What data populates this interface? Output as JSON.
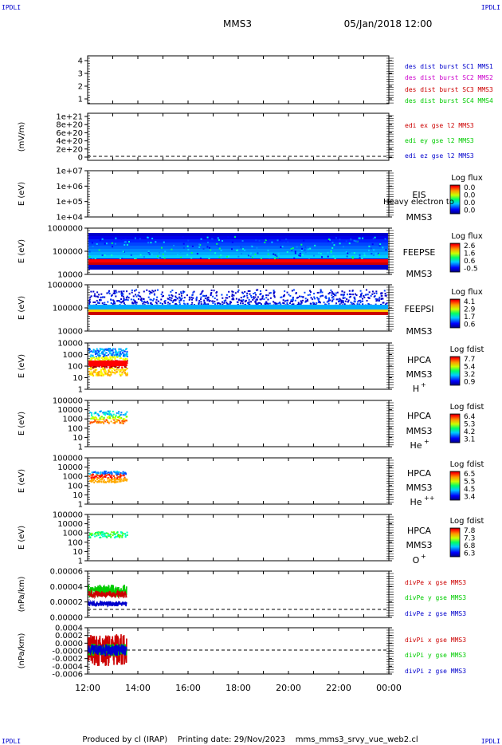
{
  "corner_labels": {
    "top_left": "IPDLI",
    "top_right": "IPDLI",
    "bottom_left": "IPDLI",
    "bottom_right": "IPDLI"
  },
  "header": {
    "spacecraft": "MMS3",
    "datetime": "05/Jan/2018 12:00"
  },
  "footer": {
    "text": "Produced by cl (IRAP)    Printing date: 29/Nov/2023    mms_mms3_srvy_vue_web2.cl"
  },
  "colors": {
    "blue": "#0000cc",
    "magenta": "#cc00cc",
    "red": "#cc0000",
    "green": "#00cc00",
    "cyan": "#00cccc",
    "yellow": "#ffff00",
    "dark_red": "#990000"
  },
  "chart_data": [
    {
      "type": "line",
      "panel": "des dist burst",
      "ylabel": "",
      "yticks": [
        "1",
        "2",
        "3",
        "4"
      ],
      "ylim": [
        0.5,
        4.5
      ],
      "legend": [
        {
          "name": "des dist burst SC1 MMS1",
          "color": "#0000cc"
        },
        {
          "name": "des dist burst SC2 MMS2",
          "color": "#cc00cc"
        },
        {
          "name": "des dist burst SC3 MMS3",
          "color": "#cc0000"
        },
        {
          "name": "des dist burst SC4 MMS4",
          "color": "#00cc00"
        }
      ],
      "data": []
    },
    {
      "type": "line",
      "panel": "edi",
      "ylabel": "(mV/m)",
      "yticks": [
        "0",
        "2e+20",
        "4e+20",
        "6e+20",
        "8e+20",
        "1e+21"
      ],
      "ylim": [
        0,
        1.05e+21
      ],
      "zero_line": true,
      "legend": [
        {
          "name": "edi ex gse l2 MMS3",
          "color": "#cc0000"
        },
        {
          "name": "edi ey gse l2 MMS3",
          "color": "#00cc00"
        },
        {
          "name": "edi ez gse l2 MMS3",
          "color": "#0000cc"
        }
      ],
      "data": []
    },
    {
      "type": "heatmap",
      "panel": "EIS",
      "ylabel": "E (eV)",
      "yscale": "log",
      "yticks": [
        "1e+04",
        "1e+05",
        "1e+06",
        "1e+07"
      ],
      "instrument": "EIS",
      "sc": "MMS3",
      "overlay_text": "Heavy electron to",
      "colorbar": {
        "title": "Log flux",
        "ticks": [
          "0.0",
          "0.0",
          "0.0",
          "0.0"
        ]
      },
      "data_coverage": []
    },
    {
      "type": "heatmap",
      "panel": "FEEPSE",
      "ylabel": "E (eV)",
      "yscale": "log",
      "yticks": [
        "10000",
        "100000",
        "1000000"
      ],
      "instrument": "FEEPSE",
      "sc": "MMS3",
      "colorbar": {
        "title": "Log flux",
        "ticks": [
          "2.6",
          "1.6",
          "0.6",
          "-0.5"
        ]
      },
      "data_coverage": [
        "12:00",
        "24:00"
      ]
    },
    {
      "type": "heatmap",
      "panel": "FEEPSI",
      "ylabel": "E (eV)",
      "yscale": "log",
      "yticks": [
        "10000",
        "100000",
        "1000000"
      ],
      "instrument": "FEEPSI",
      "sc": "MMS3",
      "colorbar": {
        "title": "Log flux",
        "ticks": [
          "4.1",
          "2.9",
          "1.7",
          "0.6"
        ]
      },
      "data_coverage": [
        "12:00",
        "24:00"
      ]
    },
    {
      "type": "heatmap",
      "panel": "HPCA H+",
      "ylabel": "E (eV)",
      "yscale": "log",
      "yticks": [
        "1",
        "10",
        "100",
        "1000",
        "10000"
      ],
      "instrument": "HPCA",
      "sc": "MMS3",
      "species": "H",
      "species_sup": "+",
      "colorbar": {
        "title": "Log fdist",
        "ticks": [
          "7.7",
          "5.4",
          "3.2",
          "0.9"
        ]
      },
      "data_coverage": [
        "12:00",
        "13:35"
      ]
    },
    {
      "type": "heatmap",
      "panel": "HPCA He+",
      "ylabel": "E (eV)",
      "yscale": "log",
      "yticks": [
        "1",
        "10",
        "100",
        "1000",
        "10000",
        "100000"
      ],
      "instrument": "HPCA",
      "sc": "MMS3",
      "species": "He",
      "species_sup": "+",
      "colorbar": {
        "title": "Log fdist",
        "ticks": [
          "6.4",
          "5.3",
          "4.2",
          "3.1"
        ]
      },
      "data_coverage": [
        "12:00",
        "13:35"
      ]
    },
    {
      "type": "heatmap",
      "panel": "HPCA He++",
      "ylabel": "E (eV)",
      "yscale": "log",
      "yticks": [
        "1",
        "10",
        "100",
        "1000",
        "10000",
        "100000"
      ],
      "instrument": "HPCA",
      "sc": "MMS3",
      "species": "He",
      "species_sup": "++",
      "colorbar": {
        "title": "Log fdist",
        "ticks": [
          "6.5",
          "5.5",
          "4.5",
          "3.4"
        ]
      },
      "data_coverage": [
        "12:00",
        "13:35"
      ]
    },
    {
      "type": "heatmap",
      "panel": "HPCA O+",
      "ylabel": "E (eV)",
      "yscale": "log",
      "yticks": [
        "1",
        "10",
        "100",
        "1000",
        "10000",
        "100000"
      ],
      "instrument": "HPCA",
      "sc": "MMS3",
      "species": "O",
      "species_sup": "+",
      "colorbar": {
        "title": "Log fdist",
        "ticks": [
          "7.8",
          "7.3",
          "6.8",
          "6.3"
        ]
      },
      "data_coverage": [
        "12:00",
        "13:35"
      ]
    },
    {
      "type": "line",
      "panel": "divPe",
      "ylabel": "(nPa/km)",
      "yticks": [
        "0.00000",
        "0.00002",
        "0.00004",
        "0.00006"
      ],
      "ylim": [
        -5e-06,
        7.5e-05
      ],
      "zero_line": true,
      "legend": [
        {
          "name": "divPe x gse MMS3",
          "color": "#cc0000"
        },
        {
          "name": "divPe y gse MMS3",
          "color": "#00cc00"
        },
        {
          "name": "divPe z gse MMS3",
          "color": "#0000cc"
        }
      ],
      "data_coverage": [
        "12:00",
        "13:35"
      ]
    },
    {
      "type": "line",
      "panel": "divPi",
      "ylabel": "(nPa/km)",
      "yticks": [
        "-0.0006",
        "-0.0004",
        "-0.0002",
        "-0.0000",
        "0.0000",
        "0.0002",
        "0.0004"
      ],
      "ylim": [
        -0.00068,
        0.00046
      ],
      "zero_line": true,
      "legend": [
        {
          "name": "divPi x gse MMS3",
          "color": "#cc0000"
        },
        {
          "name": "divPi y gse MMS3",
          "color": "#00cc00"
        },
        {
          "name": "divPi z gse MMS3",
          "color": "#0000cc"
        }
      ],
      "data_coverage": [
        "12:00",
        "13:35"
      ]
    }
  ],
  "x_axis": {
    "ticks": [
      "12:00",
      "14:00",
      "16:00",
      "18:00",
      "20:00",
      "22:00",
      "00:00"
    ]
  }
}
